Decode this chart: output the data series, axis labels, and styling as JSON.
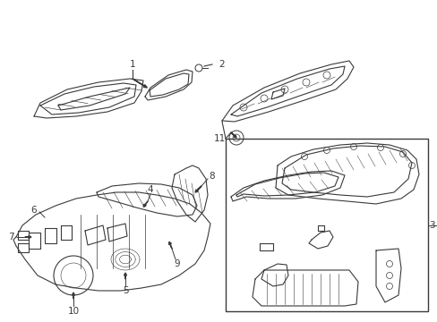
{
  "bg_color": "#ffffff",
  "line_color": "#3a3a3a",
  "fig_width": 4.89,
  "fig_height": 3.6,
  "dpi": 100,
  "label_fontsize": 7.5,
  "parts": {
    "part1_label": "1",
    "part2_label": "2",
    "part3_label": "3",
    "part4_label": "4",
    "part5_label": "5",
    "part6_label": "6",
    "part7_label": "7",
    "part8_label": "8",
    "part9_label": "9",
    "part10_label": "10",
    "part11_label": "11"
  }
}
